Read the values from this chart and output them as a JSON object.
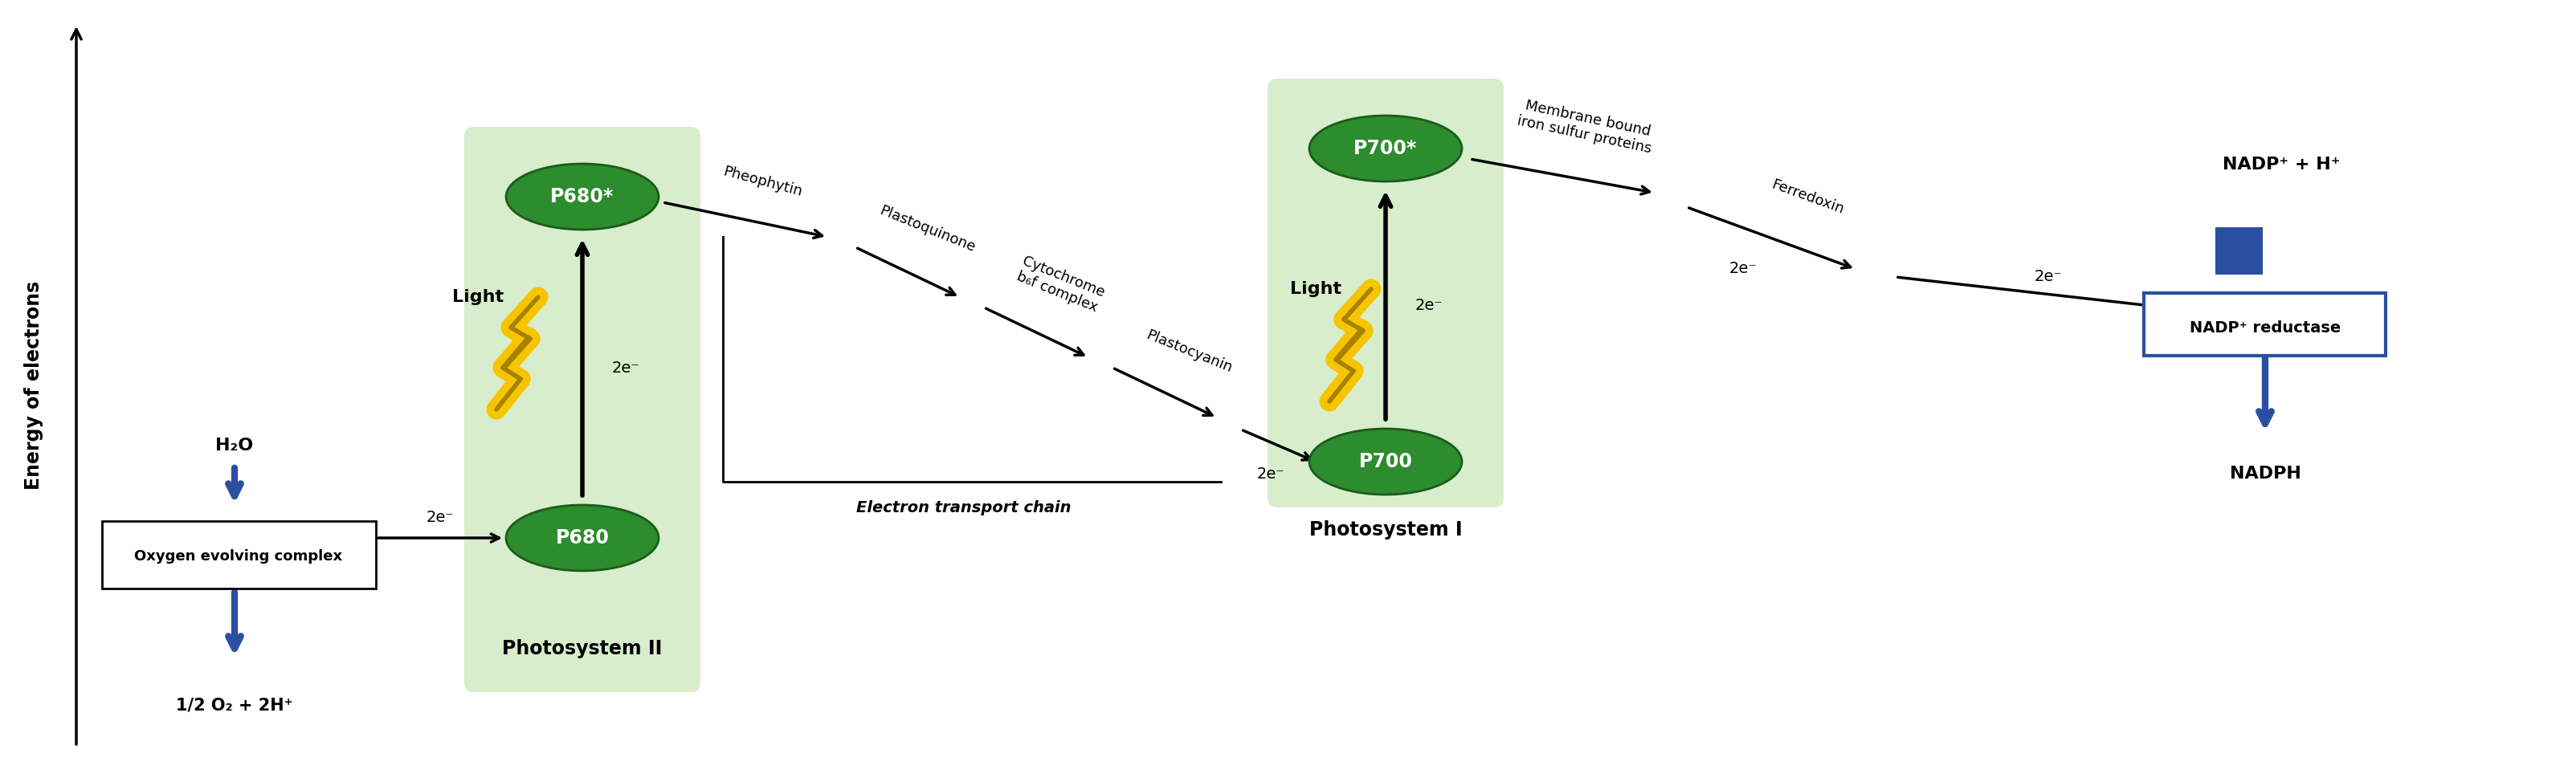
{
  "bg_color": "#ffffff",
  "light_green_bg": "#d8edcc",
  "dark_green_ellipse": "#2d8c2d",
  "dark_green_edge": "#1a5c1a",
  "blue_arrow_color": "#2b4fa0",
  "yellow_color": "#f5c500",
  "yellow_edge": "#aa8000",
  "axis_label": "Energy of electrons",
  "ps2_label": "Photosystem II",
  "ps1_label": "Photosystem I",
  "p680_star": "P680*",
  "p680": "P680",
  "p700_star": "P700*",
  "p700": "P700",
  "h2o": "H₂O",
  "o2": "1/2 O₂ + 2H⁺",
  "oxygen_evolving": "Oxygen evolving complex",
  "pheophytin": "Pheophytin",
  "plastoquinone": "Plastoquinone",
  "cytochrome": "Cytochrome\nb₆f complex",
  "plastocyanin": "Plastocyanin",
  "etc_label": "Electron transport chain",
  "membrane_bound": "Membrane bound\niron sulfur proteins",
  "ferredoxin": "Ferredoxin",
  "nadp_reductase": "NADP⁺ reductase",
  "nadp_h": "NADP⁺ + H⁺",
  "nadph": "NADPH",
  "2e": "2e⁻",
  "light_label": "Light"
}
